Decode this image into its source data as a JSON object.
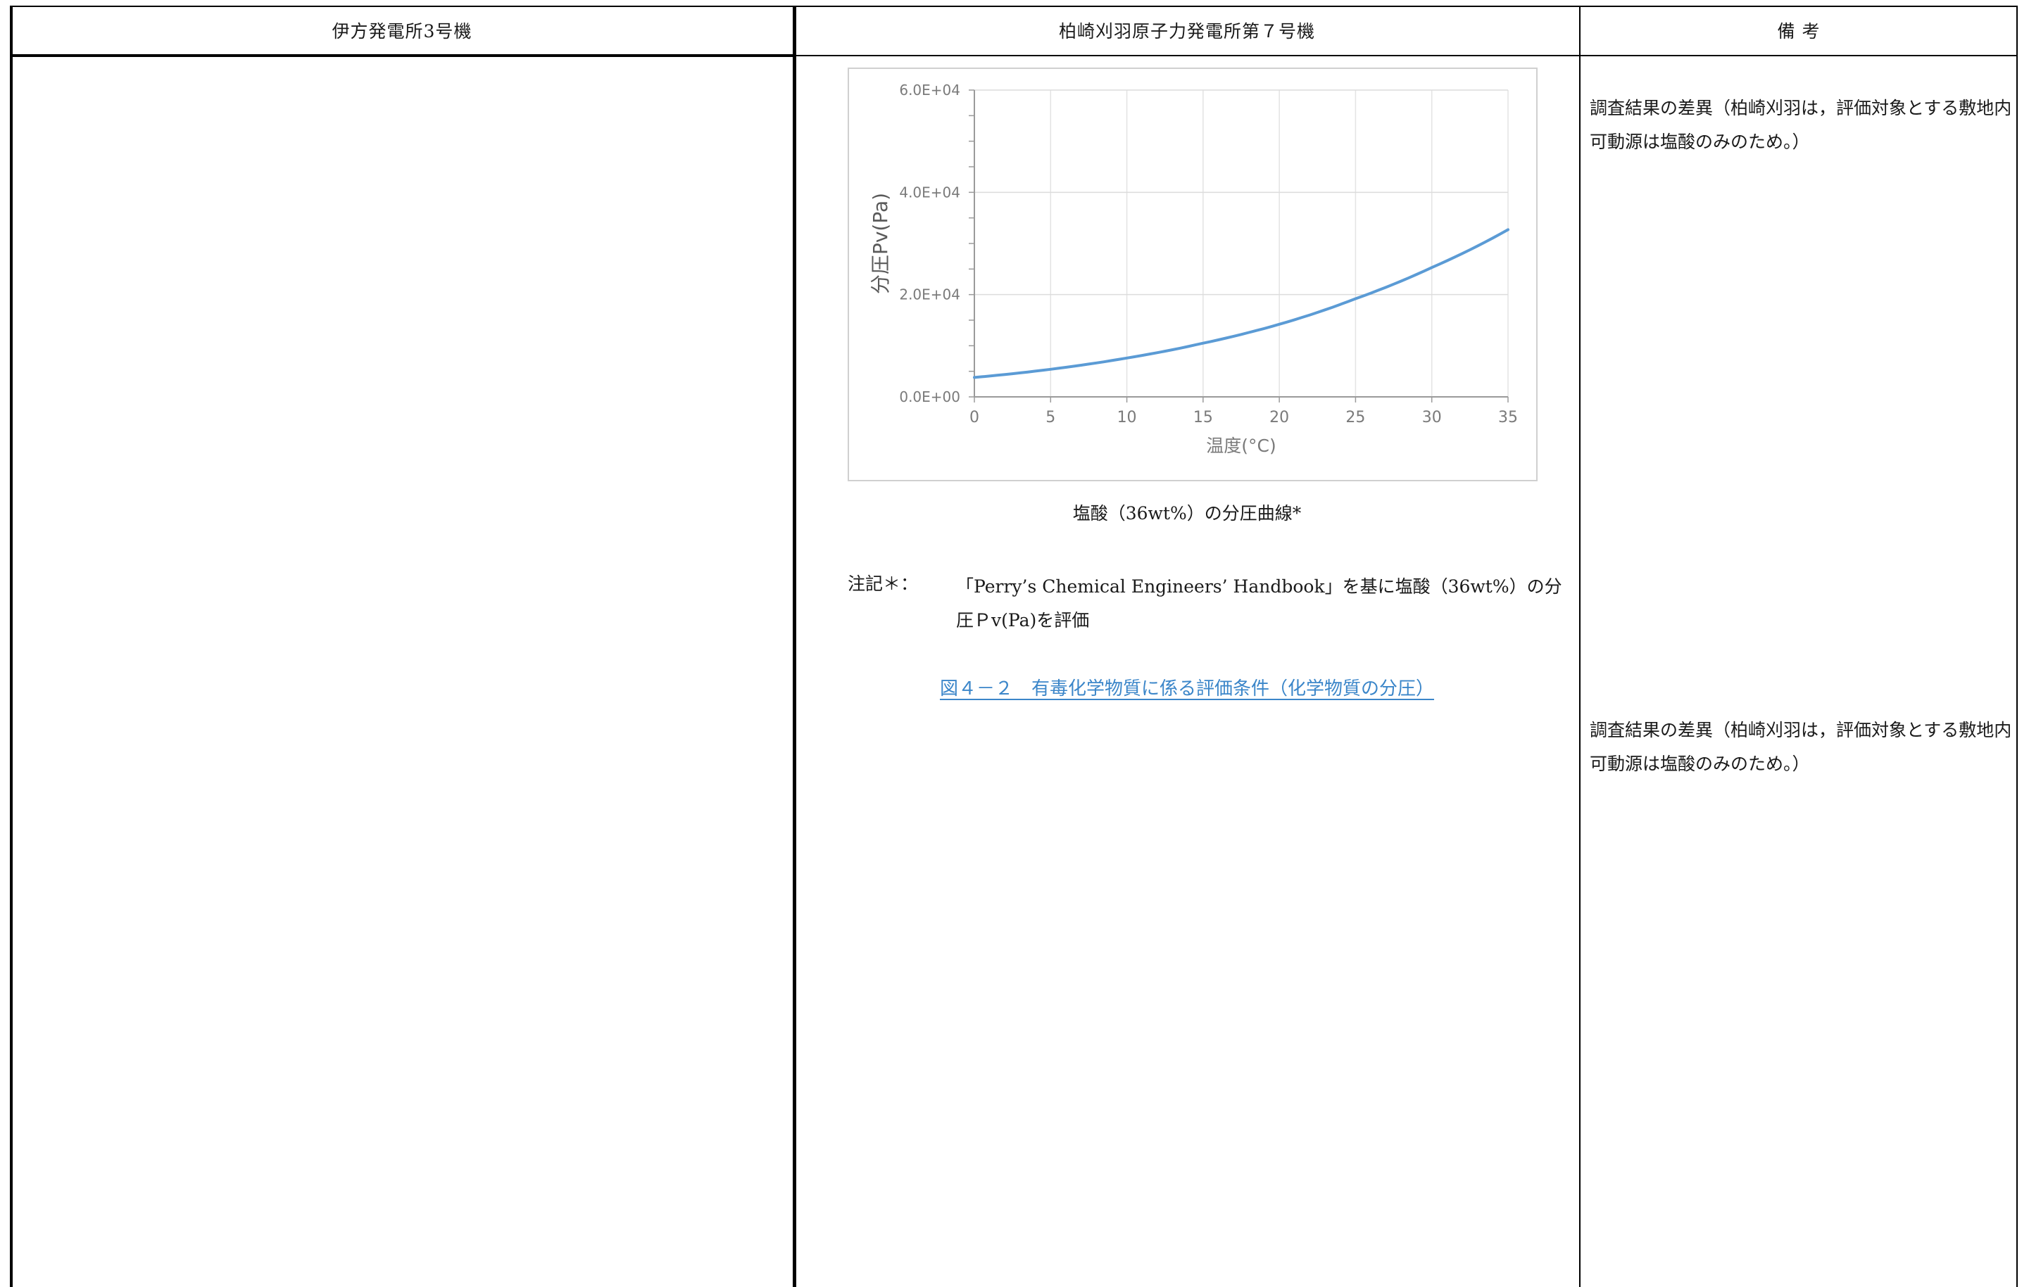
{
  "header": {
    "col1": "伊方発電所3号機",
    "col2": "柏崎刈羽原子力発電所第７号機",
    "col3": "備 考"
  },
  "chart": {
    "caption": "塩酸（36wt%）の分圧曲線*"
  },
  "note": {
    "label": "注記＊：",
    "text": "「Perry’s Chemical Engineers’ Handbook」を基に塩酸（36wt%）の分圧Ｐv(Pa)を評価"
  },
  "figure_title": "図４－２　有毒化学物質に係る評価条件（化学物質の分圧）",
  "remarks": [
    "調査結果の差異（柏崎刈羽は，評価対象とする敷地内可動源は塩酸のみのため。）",
    "調査結果の差異（柏崎刈羽は，評価対象とする敷地内可動源は塩酸のみのため。）"
  ],
  "chart_data": {
    "type": "line",
    "xlabel": "温度(°C)",
    "ylabel": "分圧Pv(Pa)",
    "xlim": [
      0,
      35
    ],
    "ylim": [
      0,
      60000
    ],
    "x_ticks": [
      "0",
      "5",
      "10",
      "15",
      "20",
      "25",
      "30",
      "35"
    ],
    "y_ticks": [
      "0.0E+00",
      "2.0E+04",
      "4.0E+04",
      "6.0E+04"
    ],
    "grid": true,
    "series": [
      {
        "color": "#5b9bd5",
        "x": [
          0,
          5,
          10,
          15,
          20,
          25,
          30,
          35
        ],
        "values": [
          3800,
          5400,
          7600,
          10500,
          14200,
          19200,
          25300,
          32700
        ]
      }
    ]
  }
}
